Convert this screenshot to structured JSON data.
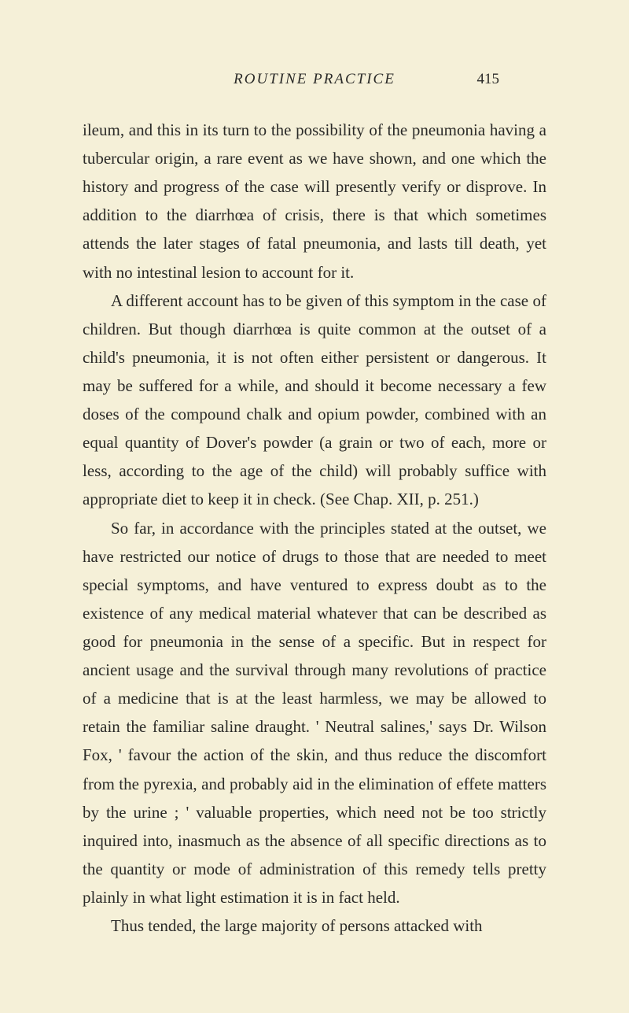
{
  "page": {
    "running_title": "ROUTINE PRACTICE",
    "page_number": "415",
    "background_color": "#f5f0d8",
    "text_color": "#2a2a28",
    "body_font_size": 21,
    "line_height": 1.72
  },
  "paragraphs": {
    "p1": "ileum, and this in its turn to the possibility of the pneumonia having a tubercular origin, a rare event as we have shown, and one which the history and progress of the case will presently verify or disprove. In addition to the diarrhœa of crisis, there is that which sometimes attends the later stages of fatal pneumonia, and lasts till death, yet with no intestinal lesion to account for it.",
    "p2": "A different account has to be given of this symptom in the case of children. But though diarrhœa is quite common at the outset of a child's pneumonia, it is not often either persistent or dangerous. It may be suffered for a while, and should it become necessary a few doses of the compound chalk and opium powder, combined with an equal quantity of Dover's powder (a grain or two of each, more or less, according to the age of the child) will probably suffice with appropriate diet to keep it in check. (See Chap. XII, p. 251.)",
    "p3": "So far, in accordance with the principles stated at the outset, we have restricted our notice of drugs to those that are needed to meet special symptoms, and have ventured to express doubt as to the existence of any medical material whatever that can be described as good for pneumonia in the sense of a specific. But in respect for ancient usage and the survival through many revolutions of practice of a medicine that is at the least harmless, we may be allowed to retain the familiar saline draught. ' Neutral salines,' says Dr. Wilson Fox, ' favour the action of the skin, and thus reduce the discomfort from the pyrexia, and probably aid in the elimination of effete matters by the urine ; ' valuable properties, which need not be too strictly inquired into, inasmuch as the absence of all specific directions as to the quantity or mode of administration of this remedy tells pretty plainly in what light estimation it is in fact held.",
    "p4": "Thus tended, the large majority of persons attacked with"
  }
}
